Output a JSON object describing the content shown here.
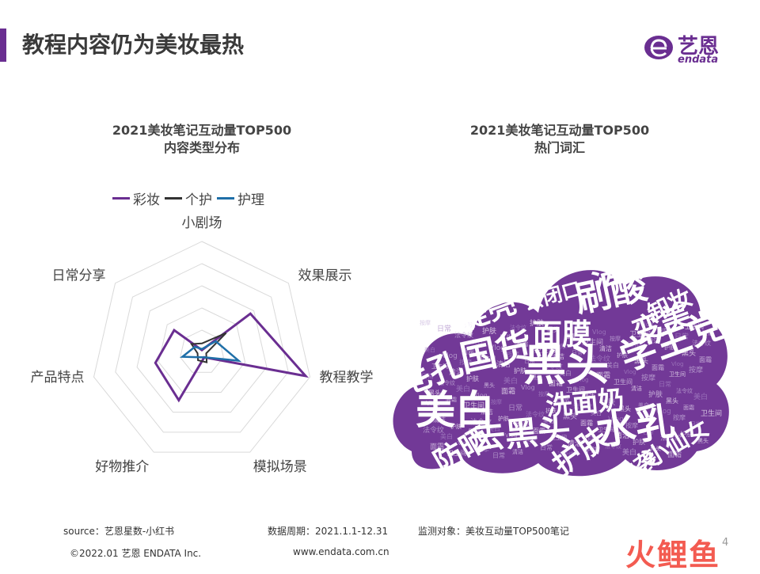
{
  "header": {
    "title": "教程内容仍为美妆最热",
    "logo_cn": "艺恩",
    "logo_en": "endata"
  },
  "colors": {
    "brand": "#6a2e91",
    "caizhuang": "#6a2e91",
    "gehu": "#333333",
    "huli": "#1f6fa8"
  },
  "chart_data": [
    {
      "type": "radar",
      "title": "2021美妆笔记互动量TOP500\n内容类型分布",
      "title_line1": "2021美妆笔记互动量TOP500",
      "title_line2": "内容类型分布",
      "axes": [
        "小剧场",
        "效果展示",
        "教程教学",
        "模拟场景",
        "好物推介",
        "产品特点",
        "日常分享"
      ],
      "range": [
        0,
        1
      ],
      "rings": 5,
      "grid": true,
      "legend_position": "top",
      "series": [
        {
          "name": "彩妆",
          "values": [
            0.02,
            0.56,
            0.96,
            0.05,
            0.48,
            0.43,
            0.32
          ]
        },
        {
          "name": "个护",
          "values": [
            0.08,
            0.28,
            0.04,
            0.1,
            0.08,
            0.04,
            0.12
          ]
        },
        {
          "name": "护理",
          "values": [
            0.03,
            0.16,
            0.34,
            0.05,
            0.05,
            0.18,
            0.08
          ]
        }
      ]
    },
    {
      "type": "wordcloud",
      "title": "2021美妆笔记互动量TOP500\n热门词汇",
      "title_line1": "2021美妆笔记互动量TOP500",
      "title_line2": "热门词汇",
      "words": [
        {
          "text": "黑头",
          "weight": 10
        },
        {
          "text": "美白",
          "weight": 9
        },
        {
          "text": "水乳",
          "weight": 9
        },
        {
          "text": "国货",
          "weight": 8
        },
        {
          "text": "刷酸",
          "weight": 8
        },
        {
          "text": "学生党",
          "weight": 8
        },
        {
          "text": "去黑头",
          "weight": 7
        },
        {
          "text": "毛孔",
          "weight": 7
        },
        {
          "text": "提亮",
          "weight": 6
        },
        {
          "text": "面膜",
          "weight": 6
        },
        {
          "text": "法令纹",
          "weight": 6
        },
        {
          "text": "变美",
          "weight": 6
        },
        {
          "text": "防晒",
          "weight": 6
        },
        {
          "text": "护肤",
          "weight": 6
        },
        {
          "text": "洗面奶",
          "weight": 5
        },
        {
          "text": "逆袭",
          "weight": 4
        },
        {
          "text": "小仙女",
          "weight": 4
        },
        {
          "text": "卸妆",
          "weight": 4
        },
        {
          "text": "去闭口",
          "weight": 3
        },
        {
          "text": "下颌线",
          "weight": 3
        },
        {
          "text": "按摩",
          "weight": 3
        },
        {
          "text": "面霜",
          "weight": 3
        },
        {
          "text": "美白",
          "weight": 2
        },
        {
          "text": "护肤",
          "weight": 2
        },
        {
          "text": "日常",
          "weight": 2
        },
        {
          "text": "卫生间",
          "weight": 2
        },
        {
          "text": "Vlog",
          "weight": 2
        },
        {
          "text": "黑头",
          "weight": 2
        },
        {
          "text": "法令纹",
          "weight": 2
        },
        {
          "text": "清洁",
          "weight": 2
        }
      ]
    }
  ],
  "footer": {
    "source": "source：艺恩星数-小红书",
    "period": "数据周期：2021.1.1-12.31",
    "target": "监测对象：美妆互动量TOP500笔记",
    "copyright": "©2022.01 艺恩 ENDATA Inc.",
    "website": "www.endata.com.cn",
    "page": "4"
  },
  "watermark": "火鲤鱼"
}
